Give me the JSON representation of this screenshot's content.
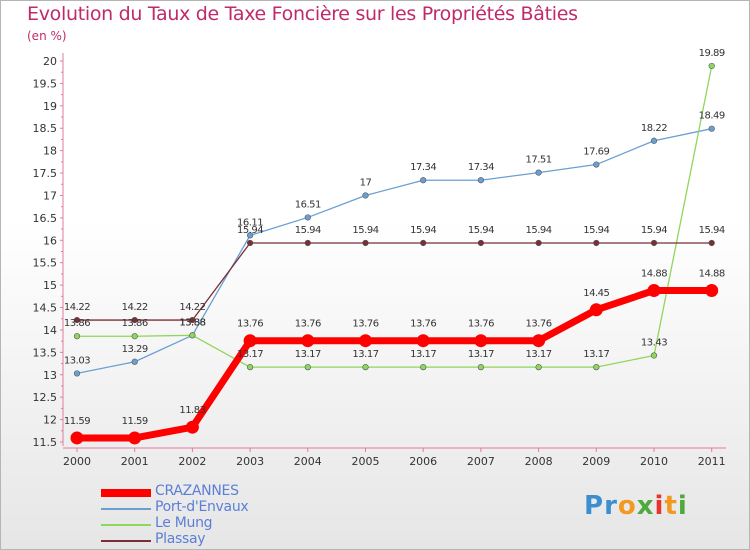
{
  "chart_data": {
    "type": "line",
    "title": "Evolution du Taux de Taxe Foncière sur les Propriétés Bâties",
    "ylabel": "(en %)",
    "xlabel": "",
    "categories": [
      "2000",
      "2001",
      "2002",
      "2003",
      "2004",
      "2005",
      "2006",
      "2007",
      "2008",
      "2009",
      "2010",
      "2011"
    ],
    "ylim": [
      11.5,
      20
    ],
    "yticks": [
      "11.5",
      "12",
      "12.5",
      "13",
      "13.5",
      "14",
      "14.5",
      "15",
      "15.5",
      "16",
      "16.5",
      "17",
      "17.5",
      "18",
      "18.5",
      "19",
      "19.5",
      "20"
    ],
    "grid": false,
    "legend_position": "bottom-left",
    "series": [
      {
        "name": "CRAZANNES",
        "color": "#ff0000",
        "values": [
          11.59,
          11.59,
          11.83,
          13.76,
          13.76,
          13.76,
          13.76,
          13.76,
          13.76,
          14.45,
          14.88,
          14.88
        ],
        "labels": [
          "11.59",
          "11.59",
          "11.83",
          "13.76",
          "13.76",
          "13.76",
          "13.76",
          "13.76",
          "13.76",
          "14.45",
          "14.88",
          "14.88"
        ]
      },
      {
        "name": "Port-d'Envaux",
        "color": "#6a9fd4",
        "values": [
          13.03,
          13.29,
          13.88,
          16.11,
          16.51,
          17,
          17.34,
          17.34,
          17.51,
          17.69,
          18.22,
          18.49
        ],
        "labels": [
          "13.03",
          "13.29",
          "13.88",
          "16.11",
          "16.51",
          "17",
          "17.34",
          "17.34",
          "17.51",
          "17.69",
          "18.22",
          "18.49"
        ]
      },
      {
        "name": "Le Mung",
        "color": "#8fd65c",
        "values": [
          13.86,
          13.86,
          13.88,
          13.17,
          13.17,
          13.17,
          13.17,
          13.17,
          13.17,
          13.17,
          13.43,
          19.89
        ],
        "labels": [
          "13.86",
          "13.86",
          "13.88",
          "13.17",
          "13.17",
          "13.17",
          "13.17",
          "13.17",
          "13.17",
          "13.17",
          "13.43",
          "19.89"
        ]
      },
      {
        "name": "Plassay",
        "color": "#7a2f34",
        "values": [
          14.22,
          14.22,
          14.22,
          15.94,
          15.94,
          15.94,
          15.94,
          15.94,
          15.94,
          15.94,
          15.94,
          15.94
        ],
        "labels": [
          "14.22",
          "14.22",
          "14.22",
          "15.94",
          "15.94",
          "15.94",
          "15.94",
          "15.94",
          "15.94",
          "15.94",
          "15.94",
          "15.94"
        ]
      }
    ]
  },
  "logo": {
    "letters": [
      {
        "char": "P",
        "color": "#3b8fd1"
      },
      {
        "char": "r",
        "color": "#3b8fd1"
      },
      {
        "char": "o",
        "color": "#f29a1f"
      },
      {
        "char": "x",
        "color": "#4daa3c"
      },
      {
        "char": "i",
        "color": "#e8342e"
      },
      {
        "char": "t",
        "color": "#f29a1f"
      },
      {
        "char": "i",
        "color": "#4daa3c"
      }
    ]
  }
}
